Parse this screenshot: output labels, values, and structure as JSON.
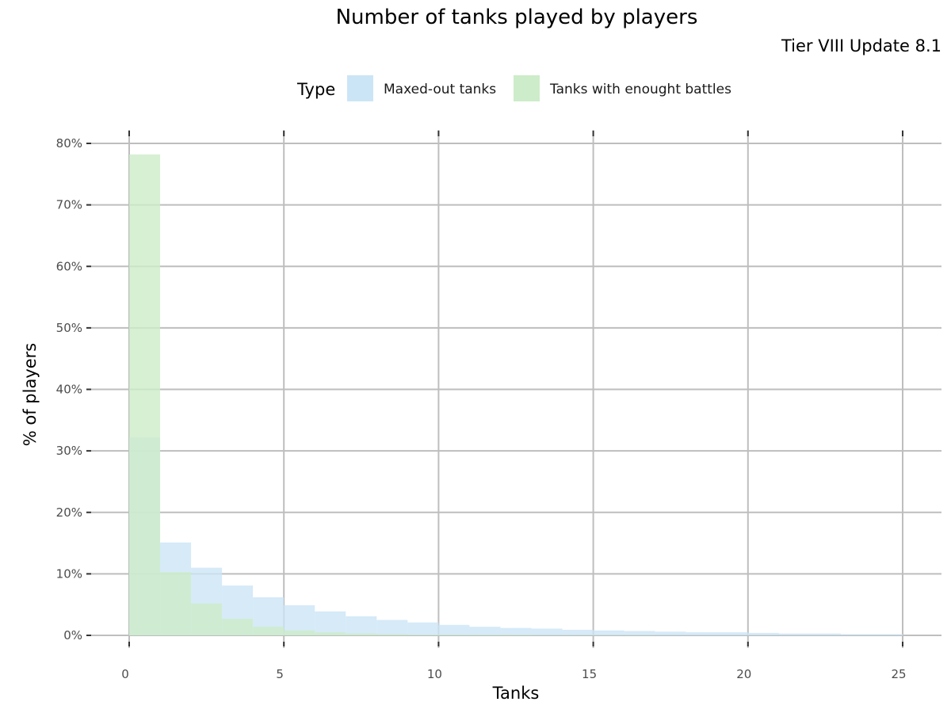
{
  "chart_data": {
    "type": "bar",
    "title": "Number of tanks played by players",
    "subtitle": "Tier VIII Update 8.1",
    "xlabel": "Tanks",
    "ylabel": "% of players",
    "xlim": [
      0,
      26
    ],
    "ylim": [
      0,
      0.82
    ],
    "x_ticks": [
      0,
      5,
      10,
      15,
      20,
      25
    ],
    "y_ticks": [
      0,
      0.1,
      0.2,
      0.3,
      0.4,
      0.5,
      0.6,
      0.7,
      0.8
    ],
    "y_tick_labels": [
      "0%",
      "10%",
      "20%",
      "30%",
      "40%",
      "50%",
      "60%",
      "70%",
      "80%"
    ],
    "grid": true,
    "legend": {
      "title": "Type",
      "position": "top"
    },
    "bin_edges": [
      0,
      1,
      2,
      3,
      4,
      5,
      6,
      7,
      8,
      9,
      10,
      11,
      12,
      13,
      14,
      15,
      16,
      17,
      18,
      19,
      20,
      21,
      22,
      23,
      24,
      25
    ],
    "series": [
      {
        "name": "Maxed-out tanks",
        "color": "#cce5f6",
        "values": [
          0.322,
          0.151,
          0.11,
          0.081,
          0.062,
          0.049,
          0.039,
          0.031,
          0.025,
          0.021,
          0.017,
          0.014,
          0.012,
          0.011,
          0.009,
          0.008,
          0.007,
          0.006,
          0.005,
          0.005,
          0.004,
          0.003,
          0.003,
          0.002,
          0.002
        ]
      },
      {
        "name": "Tanks with enought battles",
        "color": "#cdecc9",
        "values": [
          0.782,
          0.103,
          0.052,
          0.027,
          0.014,
          0.008,
          0.005,
          0.003,
          0.002,
          0.001,
          0.001,
          0.001,
          0.001,
          0.0005,
          0.0005,
          0.0003,
          0.0003,
          0.0002,
          0.0002,
          0.0001,
          0.0001,
          0.0001,
          0.0001,
          0.0001,
          0.0001
        ]
      }
    ]
  }
}
